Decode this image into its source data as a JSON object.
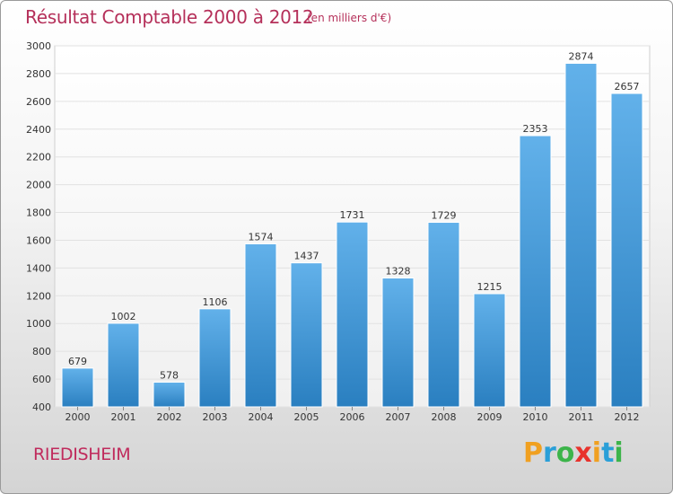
{
  "chart_data": {
    "type": "bar",
    "title": "Résultat Comptable 2000 à 2012",
    "subtitle": "(en milliers d'€)",
    "categories": [
      "2000",
      "2001",
      "2002",
      "2003",
      "2004",
      "2005",
      "2006",
      "2007",
      "2008",
      "2009",
      "2010",
      "2011",
      "2012"
    ],
    "values": [
      679,
      1002,
      578,
      1106,
      1574,
      1437,
      1731,
      1328,
      1729,
      1215,
      2353,
      2874,
      2657
    ],
    "ylim": [
      400,
      3000
    ],
    "yticks": [
      400,
      600,
      800,
      1000,
      1200,
      1400,
      1600,
      1800,
      2000,
      2200,
      2400,
      2600,
      2800,
      3000
    ],
    "grid": true,
    "xlabel": "",
    "ylabel": ""
  },
  "commune": "RIEDISHEIM",
  "logo": {
    "letters": [
      "P",
      "r",
      "o",
      "x",
      "i",
      "t",
      "i"
    ],
    "colors": [
      "#f0a020",
      "#2a9fd8",
      "#3cb44a",
      "#e8322c",
      "#f0a020",
      "#2a9fd8",
      "#3cb44a"
    ]
  },
  "colors": {
    "bar_light": "#62b1ea",
    "bar_dark": "#2a7fc0",
    "title": "#b5305a"
  }
}
